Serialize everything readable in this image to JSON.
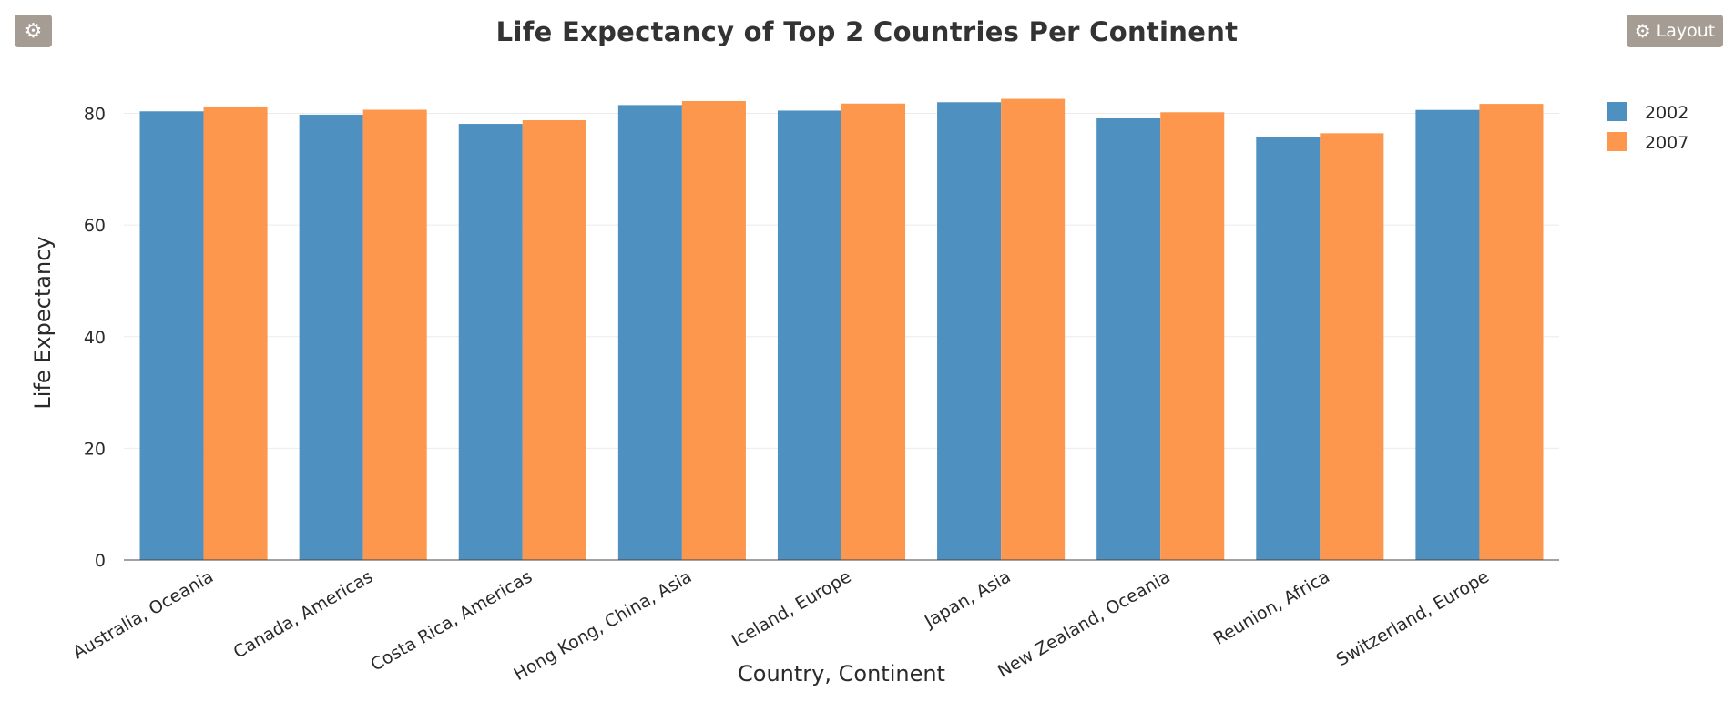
{
  "toolbar": {
    "settings_icon": "gear-icon",
    "layout_label": "Layout",
    "layout_icon": "gear-icon"
  },
  "colors": {
    "series_2002": "#4e91c0",
    "series_2007": "#fd974d",
    "button_bg": "#a59c93",
    "grid": "#ebebeb",
    "axis": "#444444"
  },
  "chart_data": {
    "type": "bar",
    "title": "Life Expectancy of Top 2 Countries Per Continent",
    "xlabel": "Country, Continent",
    "ylabel": "Life Expectancy",
    "ylim": [
      0,
      84
    ],
    "yticks": [
      0,
      20,
      40,
      60,
      80
    ],
    "grid": true,
    "legend_position": "top-right",
    "categories": [
      "Australia, Oceania",
      "Canada, Americas",
      "Costa Rica, Americas",
      "Hong Kong, China, Asia",
      "Iceland, Europe",
      "Japan, Asia",
      "New Zealand, Oceania",
      "Reunion, Africa",
      "Switzerland, Europe"
    ],
    "series": [
      {
        "name": "2002",
        "color": "#4e91c0",
        "values": [
          80.37,
          79.77,
          78.12,
          81.495,
          80.5,
          82.0,
          79.11,
          75.744,
          80.62
        ]
      },
      {
        "name": "2007",
        "color": "#fd974d",
        "values": [
          81.235,
          80.653,
          78.782,
          82.208,
          81.757,
          82.603,
          80.204,
          76.442,
          81.701
        ]
      }
    ]
  }
}
